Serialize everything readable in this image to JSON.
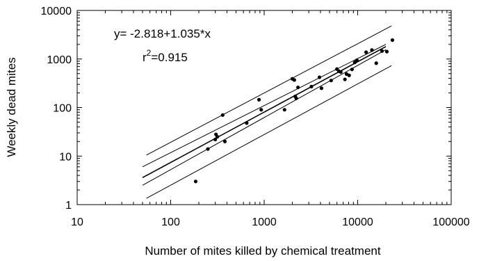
{
  "chart_data": {
    "type": "scatter",
    "x_scale": "log",
    "y_scale": "log",
    "xlabel": "Number of mites killed by chemical treatment",
    "ylabel": "Weekly dead mites",
    "xlim": [
      10,
      100000
    ],
    "ylim": [
      1,
      10000
    ],
    "x_ticks": [
      "10",
      "100",
      "1000",
      "10000",
      "100000"
    ],
    "y_ticks": [
      "1",
      "10",
      "100",
      "1000",
      "10000"
    ],
    "grid": false,
    "equation": "y= -2.818+1.035*x",
    "r2_prefix": "r",
    "r2_sup": "2",
    "r2_value": "=0.915",
    "points": [
      {
        "x": 185,
        "y": 3
      },
      {
        "x": 250,
        "y": 14
      },
      {
        "x": 300,
        "y": 22
      },
      {
        "x": 305,
        "y": 28
      },
      {
        "x": 315,
        "y": 25
      },
      {
        "x": 360,
        "y": 70
      },
      {
        "x": 380,
        "y": 20
      },
      {
        "x": 650,
        "y": 48
      },
      {
        "x": 880,
        "y": 145
      },
      {
        "x": 930,
        "y": 90
      },
      {
        "x": 1650,
        "y": 90
      },
      {
        "x": 2000,
        "y": 390
      },
      {
        "x": 2100,
        "y": 370
      },
      {
        "x": 2150,
        "y": 170
      },
      {
        "x": 2200,
        "y": 155
      },
      {
        "x": 2300,
        "y": 260
      },
      {
        "x": 3200,
        "y": 270
      },
      {
        "x": 3900,
        "y": 420
      },
      {
        "x": 4100,
        "y": 250
      },
      {
        "x": 5200,
        "y": 360
      },
      {
        "x": 6000,
        "y": 620
      },
      {
        "x": 6300,
        "y": 560
      },
      {
        "x": 6600,
        "y": 540
      },
      {
        "x": 7300,
        "y": 380
      },
      {
        "x": 7600,
        "y": 490
      },
      {
        "x": 8100,
        "y": 460
      },
      {
        "x": 8700,
        "y": 610
      },
      {
        "x": 9300,
        "y": 850
      },
      {
        "x": 9800,
        "y": 940
      },
      {
        "x": 12300,
        "y": 1380
      },
      {
        "x": 14200,
        "y": 1530
      },
      {
        "x": 15800,
        "y": 820
      },
      {
        "x": 18200,
        "y": 1460
      },
      {
        "x": 20500,
        "y": 1420
      },
      {
        "x": 23500,
        "y": 2450
      }
    ],
    "regression_line": {
      "x": [
        50,
        20000
      ],
      "y": [
        3.6,
        1800
      ]
    },
    "confidence_band": {
      "upper": {
        "x": [
          50,
          20000
        ],
        "y": [
          6,
          2000
        ]
      },
      "lower": {
        "x": [
          50,
          20000
        ],
        "y": [
          2.5,
          1550
        ]
      }
    },
    "prediction_band": {
      "upper": {
        "x": [
          55,
          23000
        ],
        "y": [
          10.5,
          4800
        ]
      },
      "lower": {
        "x": [
          55,
          23000
        ],
        "y": [
          1.35,
          730
        ]
      }
    }
  }
}
